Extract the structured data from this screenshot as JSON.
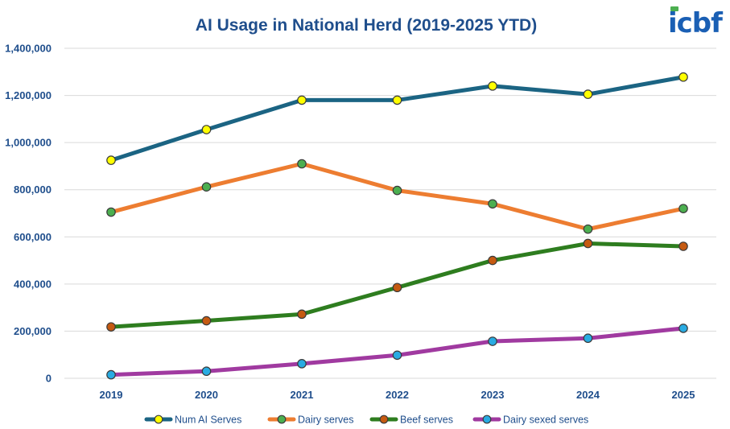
{
  "logo": {
    "text": "icbf",
    "colors": {
      "main": "#1a5fb4",
      "accent": "#4caf50"
    }
  },
  "chart_data": {
    "type": "line",
    "title": "AI Usage in National Herd (2019-2025 YTD)",
    "categories": [
      "2019",
      "2020",
      "2021",
      "2022",
      "2023",
      "2024",
      "2025"
    ],
    "ylim": [
      0,
      1400000
    ],
    "yticks": [
      0,
      200000,
      400000,
      600000,
      800000,
      1000000,
      1200000,
      1400000
    ],
    "ytick_labels": [
      "0",
      "200,000",
      "400,000",
      "600,000",
      "800,000",
      "1,000,000",
      "1,200,000",
      "1,400,000"
    ],
    "grid": true,
    "legend_position": "bottom",
    "series": [
      {
        "name": "Num AI Serves",
        "values": [
          925000,
          1055000,
          1180000,
          1180000,
          1240000,
          1205000,
          1278000
        ],
        "line_color": "#1b6483",
        "marker_color": "#ffff00"
      },
      {
        "name": "Dairy serves",
        "values": [
          705000,
          812000,
          910000,
          797000,
          740000,
          633000,
          720000
        ],
        "line_color": "#ed7d31",
        "marker_color": "#4caf50"
      },
      {
        "name": "Beef serves",
        "values": [
          218000,
          244000,
          272000,
          385000,
          500000,
          572000,
          560000
        ],
        "line_color": "#2e7d1f",
        "marker_color": "#c55a11"
      },
      {
        "name": "Dairy sexed serves",
        "values": [
          15000,
          30000,
          62000,
          98000,
          157000,
          170000,
          212000
        ],
        "line_color": "#a03aa0",
        "marker_color": "#29abe2"
      }
    ]
  }
}
